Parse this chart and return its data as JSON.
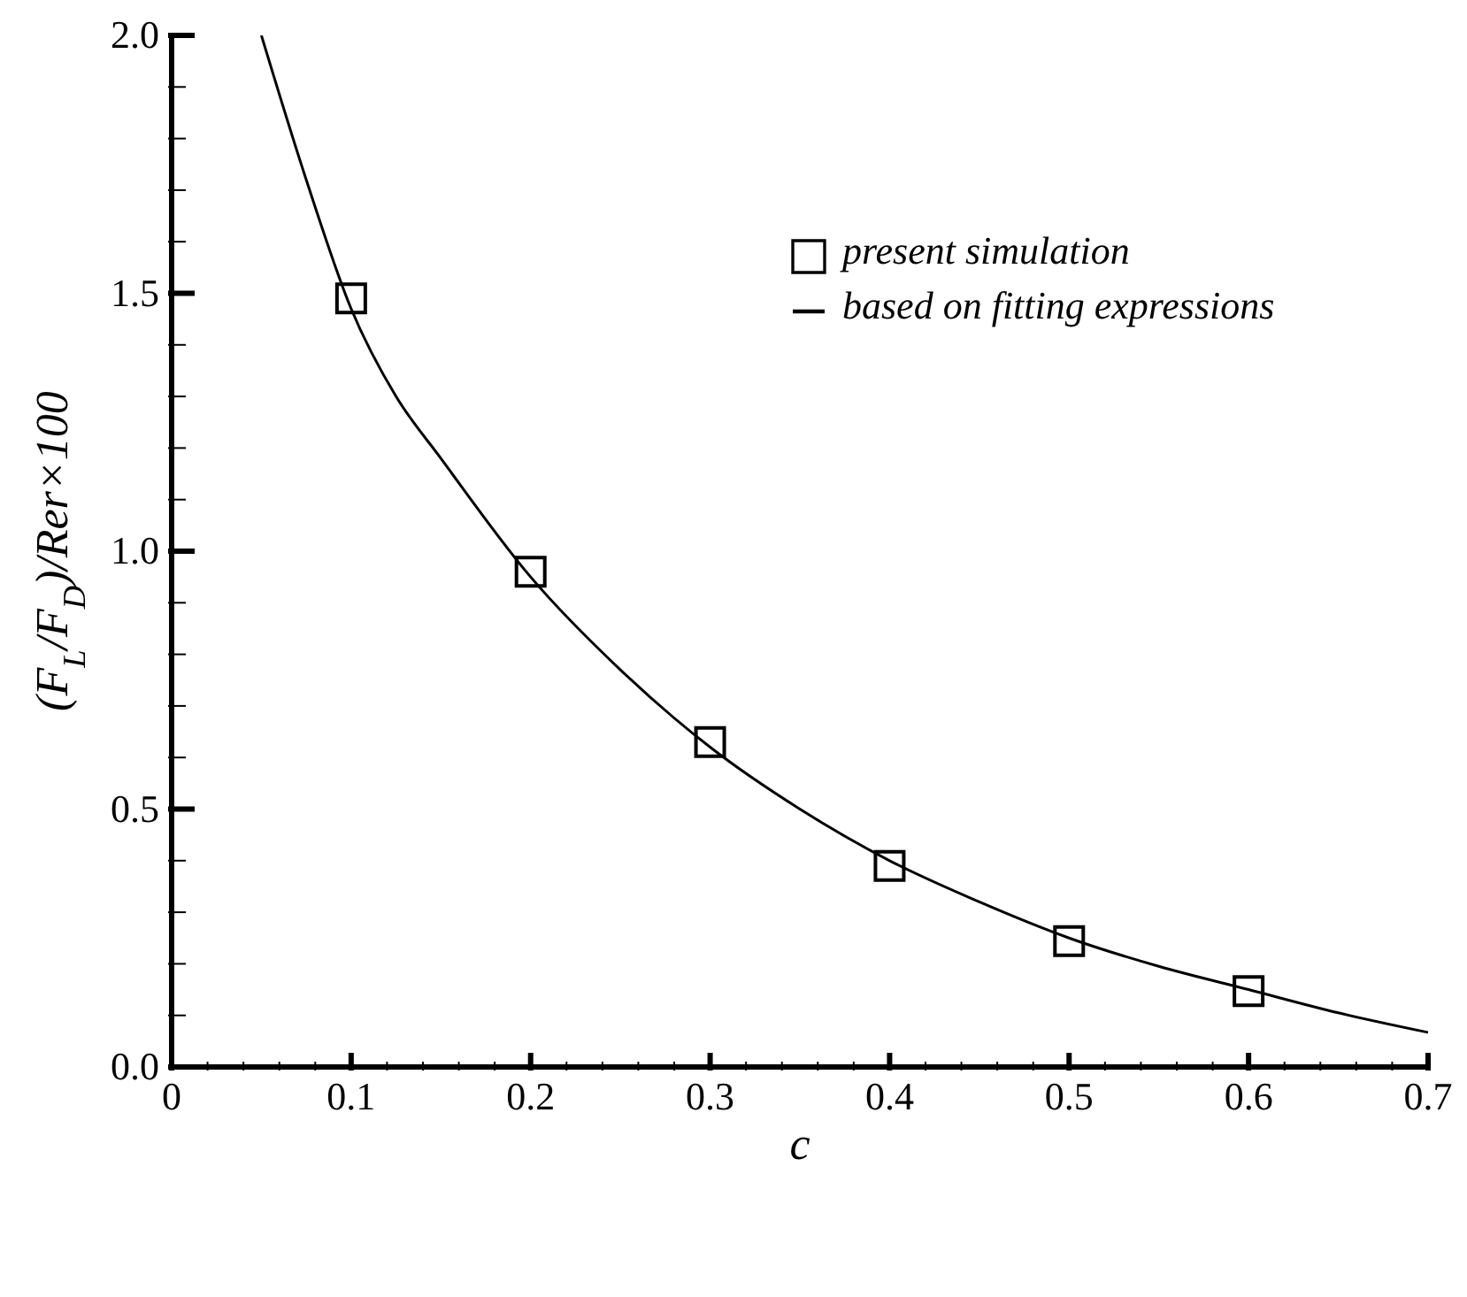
{
  "chart_data": {
    "type": "scatter",
    "xlabel": "c",
    "ylabel": "(F$_{L}$/F$_{D}$)/Rer×100",
    "xlim": [
      0,
      0.7
    ],
    "ylim": [
      0,
      2.0
    ],
    "xticks": [
      0,
      {
        "value": 0.02,
        "label": null
      },
      {
        "value": 0.04,
        "label": null
      },
      {
        "value": 0.06,
        "label": null
      },
      {
        "value": 0.08,
        "label": null
      },
      0.1,
      {
        "value": 0.12,
        "label": null
      },
      {
        "value": 0.14,
        "label": null
      },
      {
        "value": 0.16,
        "label": null
      },
      {
        "value": 0.18,
        "label": null
      },
      0.2,
      {
        "value": 0.22,
        "label": null
      },
      {
        "value": 0.24,
        "label": null
      },
      {
        "value": 0.26,
        "label": null
      },
      {
        "value": 0.28,
        "label": null
      },
      0.3,
      {
        "value": 0.32,
        "label": null
      },
      {
        "value": 0.34,
        "label": null
      },
      {
        "value": 0.36,
        "label": null
      },
      {
        "value": 0.38,
        "label": null
      },
      0.4,
      {
        "value": 0.42,
        "label": null
      },
      {
        "value": 0.44,
        "label": null
      },
      {
        "value": 0.46,
        "label": null
      },
      {
        "value": 0.48,
        "label": null
      },
      0.5,
      {
        "value": 0.52,
        "label": null
      },
      {
        "value": 0.54,
        "label": null
      },
      {
        "value": 0.56,
        "label": null
      },
      {
        "value": 0.58,
        "label": null
      },
      0.6,
      {
        "value": 0.62,
        "label": null
      },
      {
        "value": 0.64,
        "label": null
      },
      {
        "value": 0.66,
        "label": null
      },
      {
        "value": 0.68,
        "label": null
      },
      0.7
    ],
    "yticks": [
      {
        "value": 0,
        "label": "0.0"
      },
      {
        "value": 0.1,
        "label": null
      },
      {
        "value": 0.2,
        "label": null
      },
      {
        "value": 0.3,
        "label": null
      },
      {
        "value": 0.4,
        "label": null
      },
      0.5,
      {
        "value": 0.6,
        "label": null
      },
      {
        "value": 0.7,
        "label": null
      },
      {
        "value": 0.8,
        "label": null
      },
      {
        "value": 0.9,
        "label": null
      },
      {
        "value": 1,
        "label": "1.0"
      },
      {
        "value": 1.1,
        "label": null
      },
      {
        "value": 1.2,
        "label": null
      },
      {
        "value": 1.3,
        "label": null
      },
      {
        "value": 1.4,
        "label": null
      },
      1.5,
      {
        "value": 1.6,
        "label": null
      },
      {
        "value": 1.7,
        "label": null
      },
      {
        "value": 1.8,
        "label": null
      },
      {
        "value": 1.9,
        "label": null
      },
      {
        "value": 2,
        "label": "2.0"
      }
    ],
    "marker": "square",
    "legend": "top right",
    "series": [
      {
        "name": "present simulation",
        "type": "scatter",
        "color": "#000000",
        "x": [
          0.1,
          0.2,
          0.3,
          0.4,
          0.5,
          0.6
        ],
        "values": [
          1.49,
          0.96,
          0.63,
          0.39,
          0.244,
          0.147
        ]
      },
      {
        "name": "based on fitting expressions",
        "type": "line",
        "marker": "none",
        "color": "#000000",
        "x": [
          0.05,
          0.075,
          0.1,
          0.125,
          0.15,
          0.2,
          0.25,
          0.3,
          0.35,
          0.4,
          0.45,
          0.5,
          0.55,
          0.6,
          0.65,
          0.7
        ],
        "values": [
          2.0,
          1.72,
          1.47,
          1.3,
          1.18,
          0.95,
          0.77,
          0.62,
          0.5,
          0.4,
          0.32,
          0.25,
          0.195,
          0.15,
          0.105,
          0.067
        ]
      }
    ]
  }
}
